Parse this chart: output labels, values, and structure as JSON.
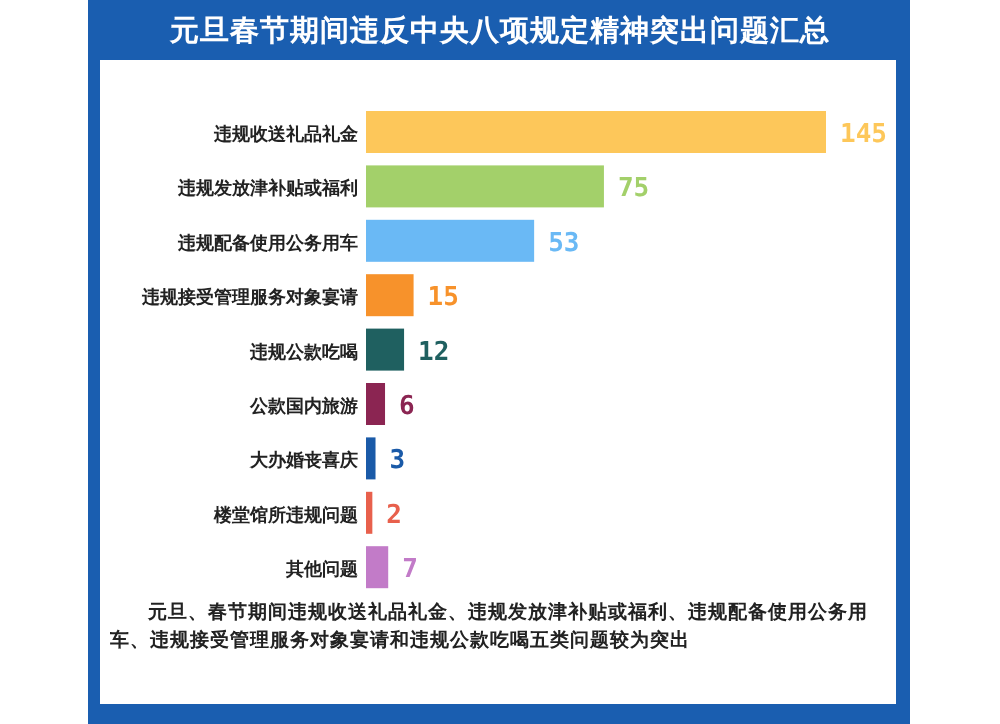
{
  "chart_data": {
    "type": "bar",
    "orientation": "horizontal",
    "title": "元旦春节期间违反中央八项规定精神突出问题汇总",
    "categories": [
      "违规收送礼品礼金",
      "违规发放津补贴或福利",
      "违规配备使用公务用车",
      "违规接受管理服务对象宴请",
      "违规公款吃喝",
      "公款国内旅游",
      "大办婚丧喜庆",
      "楼堂馆所违规问题",
      "其他问题"
    ],
    "values": [
      145,
      75,
      53,
      15,
      12,
      6,
      3,
      2,
      7
    ],
    "colors": [
      "#fdc75a",
      "#a3d06a",
      "#6ab9f5",
      "#f7922b",
      "#1f6060",
      "#8b2552",
      "#1a5aa8",
      "#e8604c",
      "#c27bc8"
    ],
    "data_labels": true,
    "annotations": [
      "元旦、春节期间违规收送礼品礼金、违规发放津补贴或福利、违规配备使用公务用车、违规接受管理服务对象宴请和违规公款吃喝五类问题较为突出"
    ]
  }
}
